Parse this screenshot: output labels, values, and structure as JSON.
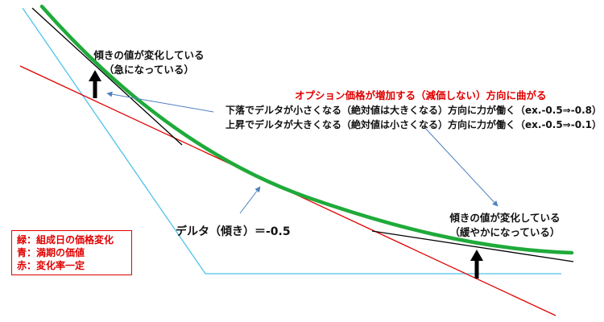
{
  "annotations": {
    "steep_line1": "傾きの値が変化している",
    "steep_line2": "（急になっている）",
    "title_red": "オプション価格が増加する（減価しない）方向に曲がる",
    "desc_line1": "下落でデルタが小さくなる（絶対値は大きくなる）方向に力が働く（ex.-0.5⇒-0.8）",
    "desc_line2": "上昇でデルタが大きくなる（絶対値は小さくなる）方向に力が働く（ex.-0.5⇒-0.1）",
    "delta_label": "デルタ（傾き）＝-0.5",
    "gentle_line1": "傾きの値が変化している",
    "gentle_line2": "（緩やかになっている）"
  },
  "legend": {
    "green": "緑：組成日の価格変化",
    "blue": "青：満期の価値",
    "red": "赤：変化率一定"
  },
  "colors": {
    "green_curve": "#1faa3a",
    "blue_payoff": "#4fc3e8",
    "red_tangent": "#e00000",
    "black_tangent": "#000000",
    "pointer_arrow": "#4f81bd"
  }
}
